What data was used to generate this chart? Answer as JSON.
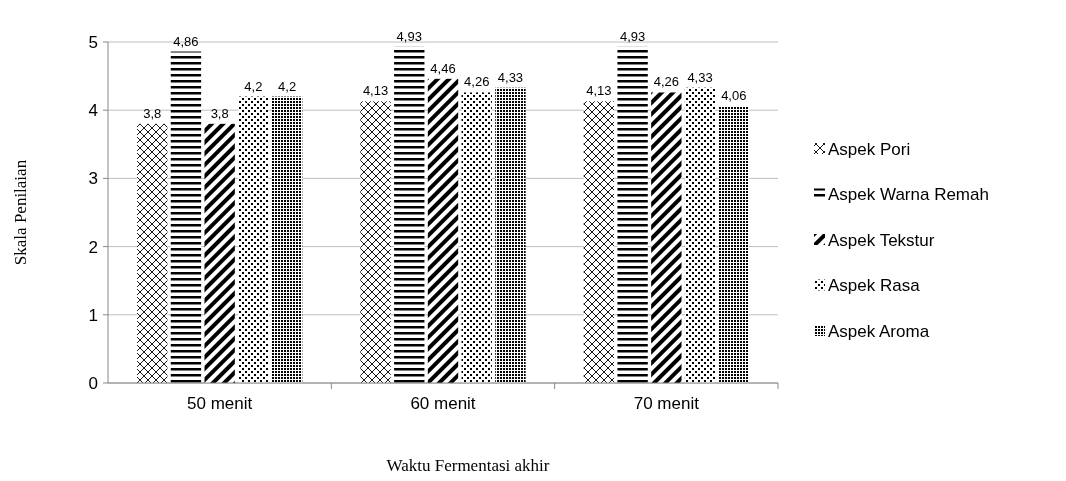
{
  "chart_data": {
    "type": "bar",
    "xlabel": "Waktu Fermentasi akhir",
    "ylabel": "Skala Penilaian",
    "categories": [
      "50 menit",
      "60 menit",
      "70 menit"
    ],
    "series": [
      {
        "name": "Aspek Pori",
        "color": "#000000",
        "values": [
          3.8,
          4.13,
          4.13
        ],
        "value_labels": [
          "3,8",
          "4,13",
          "4,13"
        ]
      },
      {
        "name": "Aspek Warna Remah",
        "color": "#000000",
        "values": [
          4.86,
          4.93,
          4.93
        ],
        "value_labels": [
          "4,86",
          "4,93",
          "4,93"
        ]
      },
      {
        "name": "Aspek Tekstur",
        "color": "#000000",
        "values": [
          3.8,
          4.46,
          4.26
        ],
        "value_labels": [
          "3,8",
          "4,46",
          "4,26"
        ]
      },
      {
        "name": "Aspek Rasa",
        "color": "#000000",
        "values": [
          4.2,
          4.26,
          4.33
        ],
        "value_labels": [
          "4,2",
          "4,26",
          "4,33"
        ]
      },
      {
        "name": "Aspek Aroma",
        "color": "#000000",
        "values": [
          4.2,
          4.33,
          4.06
        ],
        "value_labels": [
          "4,2",
          "4,33",
          "4,06"
        ]
      }
    ],
    "ylim": [
      0,
      5
    ],
    "yticks": [
      0,
      1,
      2,
      3,
      4,
      5
    ],
    "grid": "y",
    "legend": "right"
  }
}
